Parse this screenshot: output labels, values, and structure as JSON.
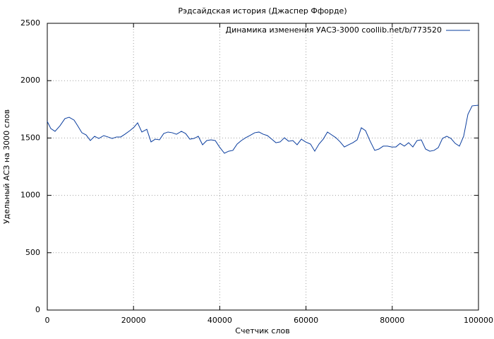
{
  "chart_data": {
    "type": "line",
    "title": "Рэдсайдская история (Джаспер Ффорде)",
    "xlabel": "Счетчик слов",
    "ylabel": "Удельный АСЗ на 3000 слов",
    "x": [
      0,
      820,
      1800,
      2950,
      4090,
      5070,
      6220,
      7040,
      8020,
      9000,
      9980,
      10970,
      11950,
      13090,
      14080,
      15060,
      16040,
      17020,
      18000,
      19150,
      20130,
      20950,
      21930,
      23080,
      24060,
      25040,
      26020,
      27000,
      27990,
      28970,
      29950,
      31100,
      32080,
      33060,
      34040,
      35020,
      36010,
      36990,
      37970,
      38950,
      39930,
      41080,
      42060,
      43040,
      44030,
      45010,
      45990,
      46970,
      48120,
      49100,
      50080,
      51060,
      52050,
      53030,
      54010,
      54990,
      55970,
      56950,
      57940,
      58920,
      59900,
      61050,
      62030,
      63010,
      63990,
      64980,
      65960,
      66940,
      67920,
      68900,
      69890,
      70870,
      71850,
      72830,
      73810,
      74800,
      75940,
      76920,
      77910,
      78890,
      79870,
      80850,
      81830,
      82810,
      83800,
      84780,
      85760,
      86740,
      87720,
      88710,
      89690,
      90670,
      91650,
      92640,
      93620,
      94600,
      95580,
      96560,
      97550,
      98530,
      100000
    ],
    "series": [
      {
        "name": "Динамика изменения УАСЗ-3000 coollib.net/b/773520",
        "color": "#0a3d9e",
        "values": [
          1644,
          1582,
          1558,
          1607,
          1669,
          1681,
          1656,
          1607,
          1546,
          1527,
          1478,
          1515,
          1496,
          1521,
          1509,
          1496,
          1509,
          1509,
          1533,
          1564,
          1595,
          1632,
          1552,
          1576,
          1466,
          1490,
          1484,
          1539,
          1552,
          1546,
          1533,
          1558,
          1539,
          1490,
          1496,
          1515,
          1441,
          1478,
          1484,
          1478,
          1422,
          1367,
          1385,
          1392,
          1447,
          1478,
          1502,
          1521,
          1546,
          1552,
          1533,
          1521,
          1490,
          1459,
          1466,
          1502,
          1472,
          1478,
          1441,
          1490,
          1466,
          1447,
          1385,
          1447,
          1490,
          1552,
          1527,
          1502,
          1466,
          1422,
          1441,
          1459,
          1484,
          1589,
          1564,
          1478,
          1392,
          1404,
          1429,
          1429,
          1422,
          1422,
          1453,
          1429,
          1459,
          1422,
          1478,
          1484,
          1404,
          1385,
          1392,
          1416,
          1496,
          1515,
          1496,
          1453,
          1429,
          1515,
          1706,
          1780,
          1786
        ]
      }
    ],
    "xlim": [
      0,
      100000
    ],
    "xticks": [
      0,
      20000,
      40000,
      60000,
      80000,
      100000
    ],
    "ylim": [
      0,
      2500
    ],
    "yticks": [
      0,
      500,
      1000,
      1500,
      2000,
      2500
    ],
    "grid": true,
    "legend": "top-right"
  }
}
